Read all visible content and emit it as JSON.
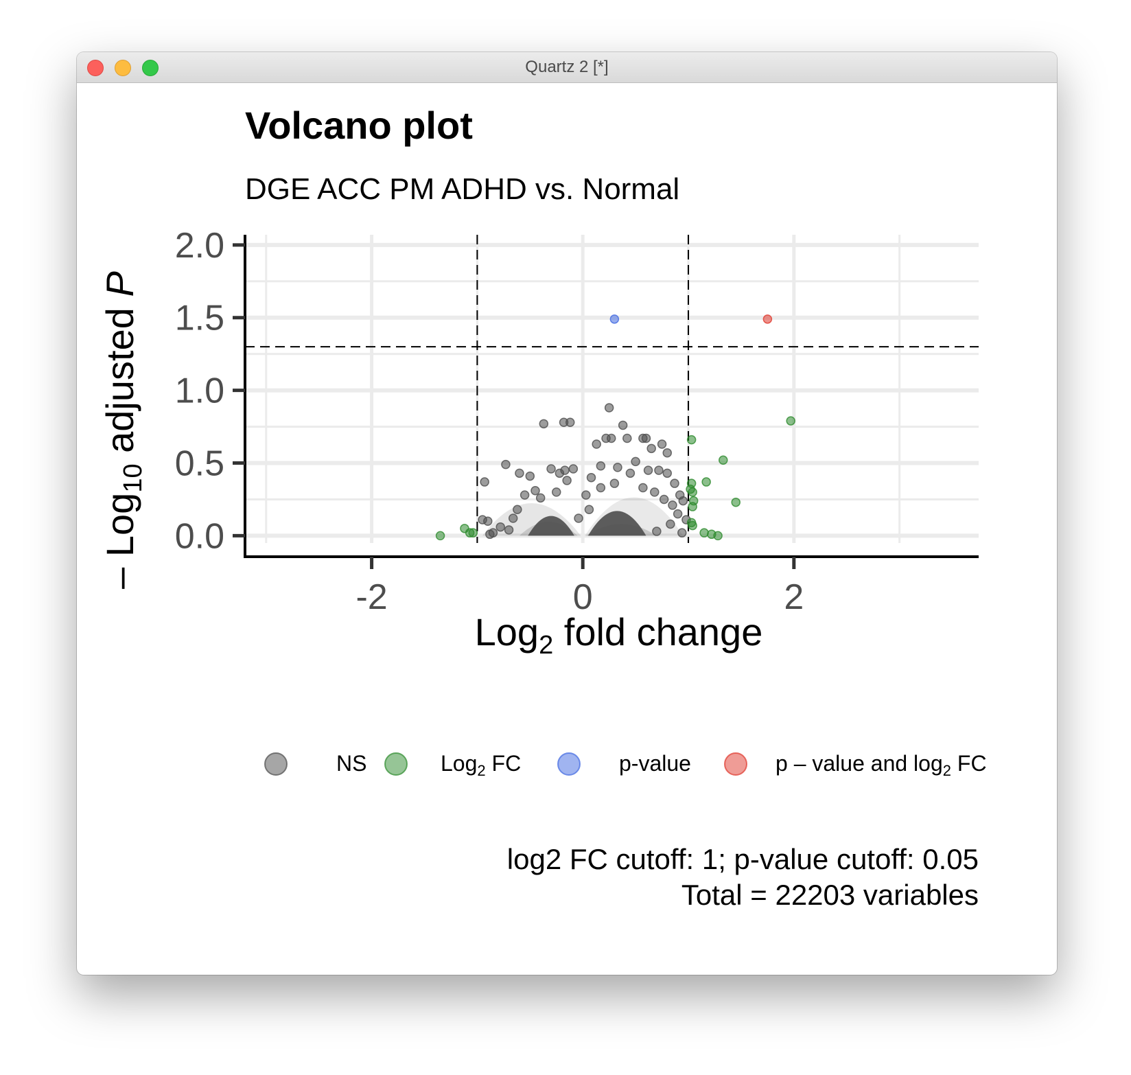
{
  "window": {
    "title": "Quartz 2 [*]",
    "buttons": {
      "close": "close-icon",
      "minimize": "minimize-icon",
      "maximize": "maximize-icon"
    },
    "button_colors": {
      "close": "#fc605c",
      "minimize": "#fdbc40",
      "maximize": "#34c84a"
    }
  },
  "chart_data": {
    "type": "scatter",
    "title": "Volcano plot",
    "subtitle": "DGE ACC PM ADHD vs. Normal",
    "xlabel": {
      "prefix": "Log",
      "sub": "2",
      "suffix": " fold change"
    },
    "ylabel": {
      "prefix": "– Log",
      "sub": "10",
      "suffix": " adjusted ",
      "italic": "P"
    },
    "xlim": [
      -3.2,
      3.75
    ],
    "ylim": [
      -0.05,
      2.07
    ],
    "x_ticks": [
      -2,
      0,
      2
    ],
    "x_tick_labels": [
      "-2",
      "0",
      "2"
    ],
    "y_ticks": [
      0,
      0.5,
      1,
      1.5,
      2
    ],
    "y_tick_labels": [
      "0.0",
      "0.5",
      "1.0",
      "1.5",
      "2.0"
    ],
    "grid": true,
    "cutoffs": {
      "log2fc": [
        -1,
        1
      ],
      "neg_log10_p": 1.3
    },
    "series": [
      {
        "name": "NS",
        "color": "#4d4d4d",
        "points": [
          [
            -0.18,
            0.78
          ],
          [
            -0.12,
            0.78
          ],
          [
            -0.37,
            0.77
          ],
          [
            0.25,
            0.88
          ],
          [
            0.38,
            0.76
          ],
          [
            0.13,
            0.63
          ],
          [
            0.22,
            0.67
          ],
          [
            0.27,
            0.67
          ],
          [
            0.42,
            0.67
          ],
          [
            0.57,
            0.67
          ],
          [
            0.6,
            0.67
          ],
          [
            0.75,
            0.63
          ],
          [
            0.65,
            0.6
          ],
          [
            0.8,
            0.57
          ],
          [
            -0.73,
            0.49
          ],
          [
            -0.93,
            0.37
          ],
          [
            -0.95,
            0.11
          ],
          [
            -0.9,
            0.1
          ],
          [
            -0.6,
            0.43
          ],
          [
            -0.5,
            0.41
          ],
          [
            -0.3,
            0.46
          ],
          [
            -0.22,
            0.43
          ],
          [
            -0.17,
            0.45
          ],
          [
            -0.15,
            0.38
          ],
          [
            0.17,
            0.48
          ],
          [
            0.33,
            0.47
          ],
          [
            0.45,
            0.43
          ],
          [
            0.5,
            0.51
          ],
          [
            0.62,
            0.45
          ],
          [
            0.72,
            0.45
          ],
          [
            0.8,
            0.43
          ],
          [
            0.87,
            0.36
          ],
          [
            0.92,
            0.28
          ],
          [
            0.95,
            0.24
          ],
          [
            -0.55,
            0.28
          ],
          [
            -0.45,
            0.31
          ],
          [
            -0.4,
            0.26
          ],
          [
            0.08,
            0.4
          ],
          [
            0.3,
            0.36
          ],
          [
            0.57,
            0.33
          ],
          [
            0.68,
            0.3
          ],
          [
            0.77,
            0.25
          ],
          [
            0.85,
            0.21
          ],
          [
            0.9,
            0.15
          ],
          [
            -0.62,
            0.18
          ],
          [
            -0.78,
            0.06
          ],
          [
            -0.7,
            0.04
          ],
          [
            -0.85,
            0.02
          ],
          [
            0.98,
            0.11
          ],
          [
            0.94,
            0.02
          ],
          [
            -0.88,
            0.01
          ],
          [
            0.7,
            0.03
          ],
          [
            0.83,
            0.08
          ],
          [
            -0.66,
            0.12
          ],
          [
            -0.09,
            0.46
          ],
          [
            -0.25,
            0.3
          ],
          [
            0.03,
            0.28
          ],
          [
            0.17,
            0.33
          ],
          [
            -0.04,
            0.12
          ],
          [
            0.06,
            0.18
          ]
        ]
      },
      {
        "name": "Log₂ FC",
        "color": "#2e8b2e",
        "points": [
          [
            -1.35,
            0.0
          ],
          [
            -1.12,
            0.05
          ],
          [
            -1.07,
            0.02
          ],
          [
            -1.04,
            0.02
          ],
          [
            1.97,
            0.79
          ],
          [
            1.03,
            0.66
          ],
          [
            1.33,
            0.52
          ],
          [
            1.17,
            0.37
          ],
          [
            1.03,
            0.36
          ],
          [
            1.02,
            0.32
          ],
          [
            1.04,
            0.3
          ],
          [
            1.05,
            0.24
          ],
          [
            1.04,
            0.2
          ],
          [
            1.45,
            0.23
          ],
          [
            1.03,
            0.09
          ],
          [
            1.04,
            0.07
          ],
          [
            1.15,
            0.02
          ],
          [
            1.22,
            0.01
          ],
          [
            1.28,
            0.0
          ]
        ]
      },
      {
        "name": "p-value",
        "color": "#4169e1",
        "points": [
          [
            0.3,
            1.49
          ]
        ]
      },
      {
        "name": "p – value and log₂ FC",
        "color": "#e0392e",
        "points": [
          [
            1.75,
            1.49
          ]
        ]
      }
    ],
    "legend": {
      "placement": "bottom",
      "items": [
        {
          "label": "NS",
          "color": "#4d4d4d"
        },
        {
          "label": "Log",
          "sub": "2",
          "suffix": " FC",
          "color": "#2e8b2e"
        },
        {
          "label": "p-value",
          "color": "#4169e1"
        },
        {
          "label": "p – value and log",
          "sub": "2",
          "suffix": " FC",
          "color": "#e0392e"
        }
      ]
    },
    "caption": [
      "log2 FC cutoff: 1; p-value cutoff: 0.05",
      "Total = 22203 variables"
    ]
  }
}
